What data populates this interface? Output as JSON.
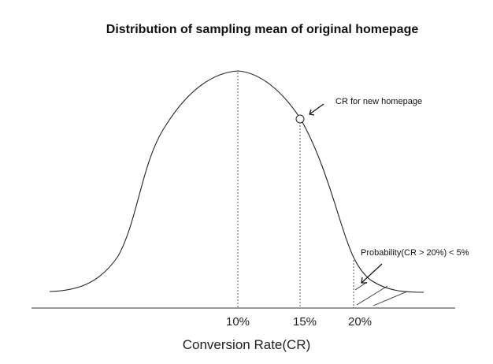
{
  "title": "Distribution of sampling mean of original homepage",
  "xlabel": "Conversion Rate(CR)",
  "ticks": {
    "t10": "10%",
    "t15": "15%",
    "t20": "20%"
  },
  "annotations": {
    "new_homepage": "CR for new homepage",
    "probability": "Probability(CR > 20%) < 5%"
  }
}
